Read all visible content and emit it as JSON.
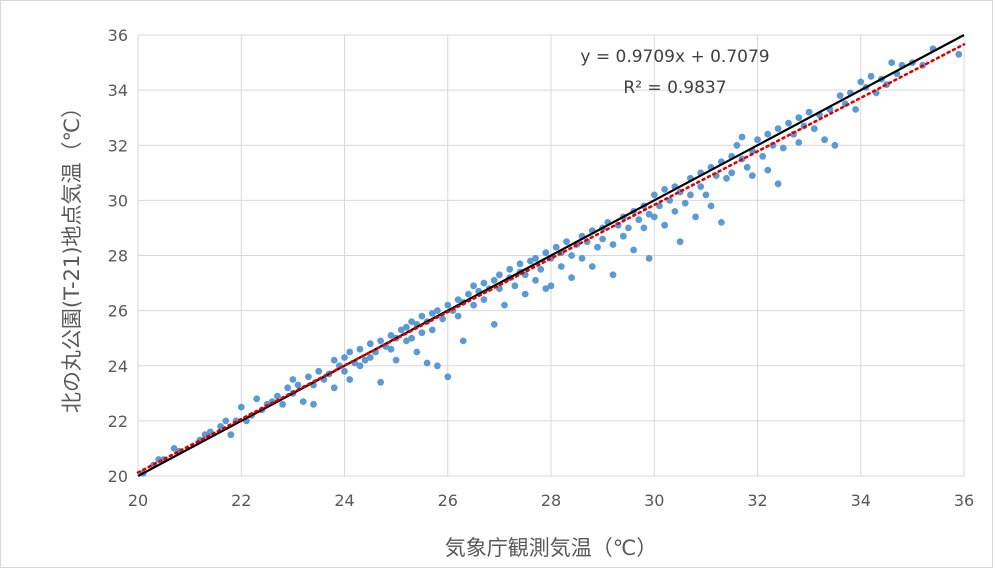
{
  "chart_data": {
    "type": "scatter",
    "xlabel": "気象庁観測気温（℃）",
    "ylabel": "北の丸公園(T-21)地点気温（℃）",
    "xlim": [
      20,
      36
    ],
    "ylim": [
      20,
      36
    ],
    "x_ticks": [
      20,
      22,
      24,
      26,
      28,
      30,
      32,
      34,
      36
    ],
    "y_ticks": [
      20,
      22,
      24,
      26,
      28,
      30,
      32,
      34,
      36
    ],
    "grid": "both",
    "legend": "none",
    "trendline": {
      "slope": 0.9709,
      "intercept": 0.7079,
      "color": "#e00000",
      "style": "dotted"
    },
    "reference_line": {
      "slope": 1,
      "intercept": 0,
      "color": "#000000",
      "style": "solid"
    },
    "equation_text": "y = 0.9709x + 0.7079",
    "r2_text": "R² = 0.9837",
    "series": [
      {
        "color": "#5b9bd5",
        "points": [
          [
            20.1,
            20.1
          ],
          [
            20.3,
            20.4
          ],
          [
            20.4,
            20.6
          ],
          [
            20.5,
            20.6
          ],
          [
            20.7,
            21.0
          ],
          [
            20.8,
            20.9
          ],
          [
            21.2,
            21.3
          ],
          [
            21.3,
            21.5
          ],
          [
            21.4,
            21.6
          ],
          [
            21.6,
            21.8
          ],
          [
            21.7,
            22.0
          ],
          [
            21.8,
            21.5
          ],
          [
            21.9,
            22.0
          ],
          [
            22.0,
            22.5
          ],
          [
            22.1,
            22.0
          ],
          [
            22.2,
            22.2
          ],
          [
            22.3,
            22.8
          ],
          [
            22.4,
            22.4
          ],
          [
            22.5,
            22.6
          ],
          [
            22.6,
            22.7
          ],
          [
            22.7,
            22.9
          ],
          [
            22.8,
            22.6
          ],
          [
            22.9,
            23.2
          ],
          [
            23.0,
            23.5
          ],
          [
            23.0,
            23.0
          ],
          [
            23.1,
            23.3
          ],
          [
            23.2,
            22.7
          ],
          [
            23.3,
            23.6
          ],
          [
            23.4,
            23.3
          ],
          [
            23.4,
            22.6
          ],
          [
            23.5,
            23.8
          ],
          [
            23.6,
            23.5
          ],
          [
            23.7,
            23.7
          ],
          [
            23.8,
            24.2
          ],
          [
            23.8,
            23.2
          ],
          [
            23.9,
            24.0
          ],
          [
            24.0,
            24.3
          ],
          [
            24.0,
            23.8
          ],
          [
            24.1,
            24.5
          ],
          [
            24.1,
            23.5
          ],
          [
            24.2,
            24.1
          ],
          [
            24.3,
            24.6
          ],
          [
            24.3,
            24.0
          ],
          [
            24.4,
            24.2
          ],
          [
            24.5,
            24.8
          ],
          [
            24.5,
            24.3
          ],
          [
            24.6,
            24.5
          ],
          [
            24.7,
            24.9
          ],
          [
            24.7,
            23.4
          ],
          [
            24.8,
            24.7
          ],
          [
            24.9,
            25.1
          ],
          [
            24.9,
            24.6
          ],
          [
            25.0,
            25.0
          ],
          [
            25.0,
            24.2
          ],
          [
            25.1,
            25.3
          ],
          [
            25.2,
            24.9
          ],
          [
            25.2,
            25.4
          ],
          [
            25.3,
            25.6
          ],
          [
            25.3,
            25.0
          ],
          [
            25.4,
            24.5
          ],
          [
            25.4,
            25.5
          ],
          [
            25.5,
            25.8
          ],
          [
            25.5,
            25.2
          ],
          [
            25.6,
            24.1
          ],
          [
            25.6,
            25.6
          ],
          [
            25.7,
            25.9
          ],
          [
            25.7,
            25.3
          ],
          [
            25.8,
            26.0
          ],
          [
            25.8,
            24.0
          ],
          [
            25.9,
            25.7
          ],
          [
            26.0,
            26.2
          ],
          [
            26.0,
            23.6
          ],
          [
            26.1,
            26.0
          ],
          [
            26.2,
            26.4
          ],
          [
            26.2,
            25.8
          ],
          [
            26.3,
            26.3
          ],
          [
            26.3,
            24.9
          ],
          [
            26.4,
            26.6
          ],
          [
            26.5,
            26.2
          ],
          [
            26.5,
            26.9
          ],
          [
            26.6,
            26.7
          ],
          [
            26.7,
            26.4
          ],
          [
            26.7,
            27.0
          ],
          [
            26.8,
            26.8
          ],
          [
            26.9,
            25.5
          ],
          [
            26.9,
            27.1
          ],
          [
            27.0,
            26.8
          ],
          [
            27.0,
            27.3
          ],
          [
            27.1,
            26.2
          ],
          [
            27.2,
            27.2
          ],
          [
            27.2,
            27.5
          ],
          [
            27.3,
            26.9
          ],
          [
            27.4,
            27.4
          ],
          [
            27.4,
            27.7
          ],
          [
            27.5,
            26.6
          ],
          [
            27.5,
            27.3
          ],
          [
            27.6,
            27.8
          ],
          [
            27.7,
            27.1
          ],
          [
            27.7,
            27.9
          ],
          [
            27.8,
            27.5
          ],
          [
            27.9,
            26.8
          ],
          [
            27.9,
            28.1
          ],
          [
            28.0,
            27.9
          ],
          [
            28.0,
            26.9
          ],
          [
            28.1,
            28.3
          ],
          [
            28.2,
            27.6
          ],
          [
            28.2,
            28.1
          ],
          [
            28.3,
            28.5
          ],
          [
            28.4,
            28.0
          ],
          [
            28.4,
            27.2
          ],
          [
            28.5,
            28.4
          ],
          [
            28.6,
            28.7
          ],
          [
            28.6,
            27.9
          ],
          [
            28.7,
            28.5
          ],
          [
            28.8,
            28.9
          ],
          [
            28.8,
            27.6
          ],
          [
            28.9,
            28.3
          ],
          [
            29.0,
            29.0
          ],
          [
            29.0,
            28.6
          ],
          [
            29.1,
            29.2
          ],
          [
            29.2,
            28.4
          ],
          [
            29.2,
            27.3
          ],
          [
            29.3,
            29.1
          ],
          [
            29.4,
            29.4
          ],
          [
            29.4,
            28.7
          ],
          [
            29.5,
            29.0
          ],
          [
            29.6,
            29.6
          ],
          [
            29.6,
            28.2
          ],
          [
            29.7,
            29.3
          ],
          [
            29.8,
            29.8
          ],
          [
            29.8,
            29.0
          ],
          [
            29.9,
            29.5
          ],
          [
            29.9,
            27.9
          ],
          [
            30.0,
            30.2
          ],
          [
            30.0,
            29.4
          ],
          [
            30.1,
            29.8
          ],
          [
            30.2,
            30.4
          ],
          [
            30.2,
            29.1
          ],
          [
            30.3,
            30.0
          ],
          [
            30.4,
            30.5
          ],
          [
            30.4,
            29.6
          ],
          [
            30.5,
            28.5
          ],
          [
            30.5,
            30.3
          ],
          [
            30.6,
            29.9
          ],
          [
            30.7,
            30.8
          ],
          [
            30.7,
            30.2
          ],
          [
            30.8,
            29.4
          ],
          [
            30.9,
            31.0
          ],
          [
            30.9,
            30.5
          ],
          [
            31.0,
            30.2
          ],
          [
            31.1,
            31.2
          ],
          [
            31.1,
            29.8
          ],
          [
            31.2,
            30.9
          ],
          [
            31.3,
            31.4
          ],
          [
            31.3,
            29.2
          ],
          [
            31.4,
            30.8
          ],
          [
            31.5,
            31.6
          ],
          [
            31.5,
            31.0
          ],
          [
            31.6,
            32.0
          ],
          [
            31.7,
            31.5
          ],
          [
            31.7,
            32.3
          ],
          [
            31.8,
            31.2
          ],
          [
            31.9,
            31.8
          ],
          [
            31.9,
            30.9
          ],
          [
            32.0,
            32.2
          ],
          [
            32.1,
            31.6
          ],
          [
            32.2,
            32.4
          ],
          [
            32.2,
            31.1
          ],
          [
            32.3,
            32.0
          ],
          [
            32.4,
            32.6
          ],
          [
            32.4,
            30.6
          ],
          [
            32.5,
            31.9
          ],
          [
            32.6,
            32.8
          ],
          [
            32.7,
            32.4
          ],
          [
            32.8,
            33.0
          ],
          [
            32.8,
            32.1
          ],
          [
            32.9,
            32.7
          ],
          [
            33.0,
            33.2
          ],
          [
            33.1,
            32.6
          ],
          [
            33.2,
            33.1
          ],
          [
            33.3,
            32.2
          ],
          [
            33.4,
            33.3
          ],
          [
            33.5,
            32.0
          ],
          [
            33.6,
            33.8
          ],
          [
            33.7,
            33.5
          ],
          [
            33.8,
            33.9
          ],
          [
            33.9,
            33.3
          ],
          [
            34.0,
            34.3
          ],
          [
            34.1,
            34.1
          ],
          [
            34.2,
            34.5
          ],
          [
            34.3,
            33.9
          ],
          [
            34.4,
            34.4
          ],
          [
            34.5,
            34.2
          ],
          [
            34.6,
            35.0
          ],
          [
            34.7,
            34.6
          ],
          [
            34.8,
            34.9
          ],
          [
            35.0,
            35.0
          ],
          [
            35.2,
            34.9
          ],
          [
            35.4,
            35.5
          ],
          [
            35.9,
            35.3
          ]
        ]
      }
    ]
  }
}
